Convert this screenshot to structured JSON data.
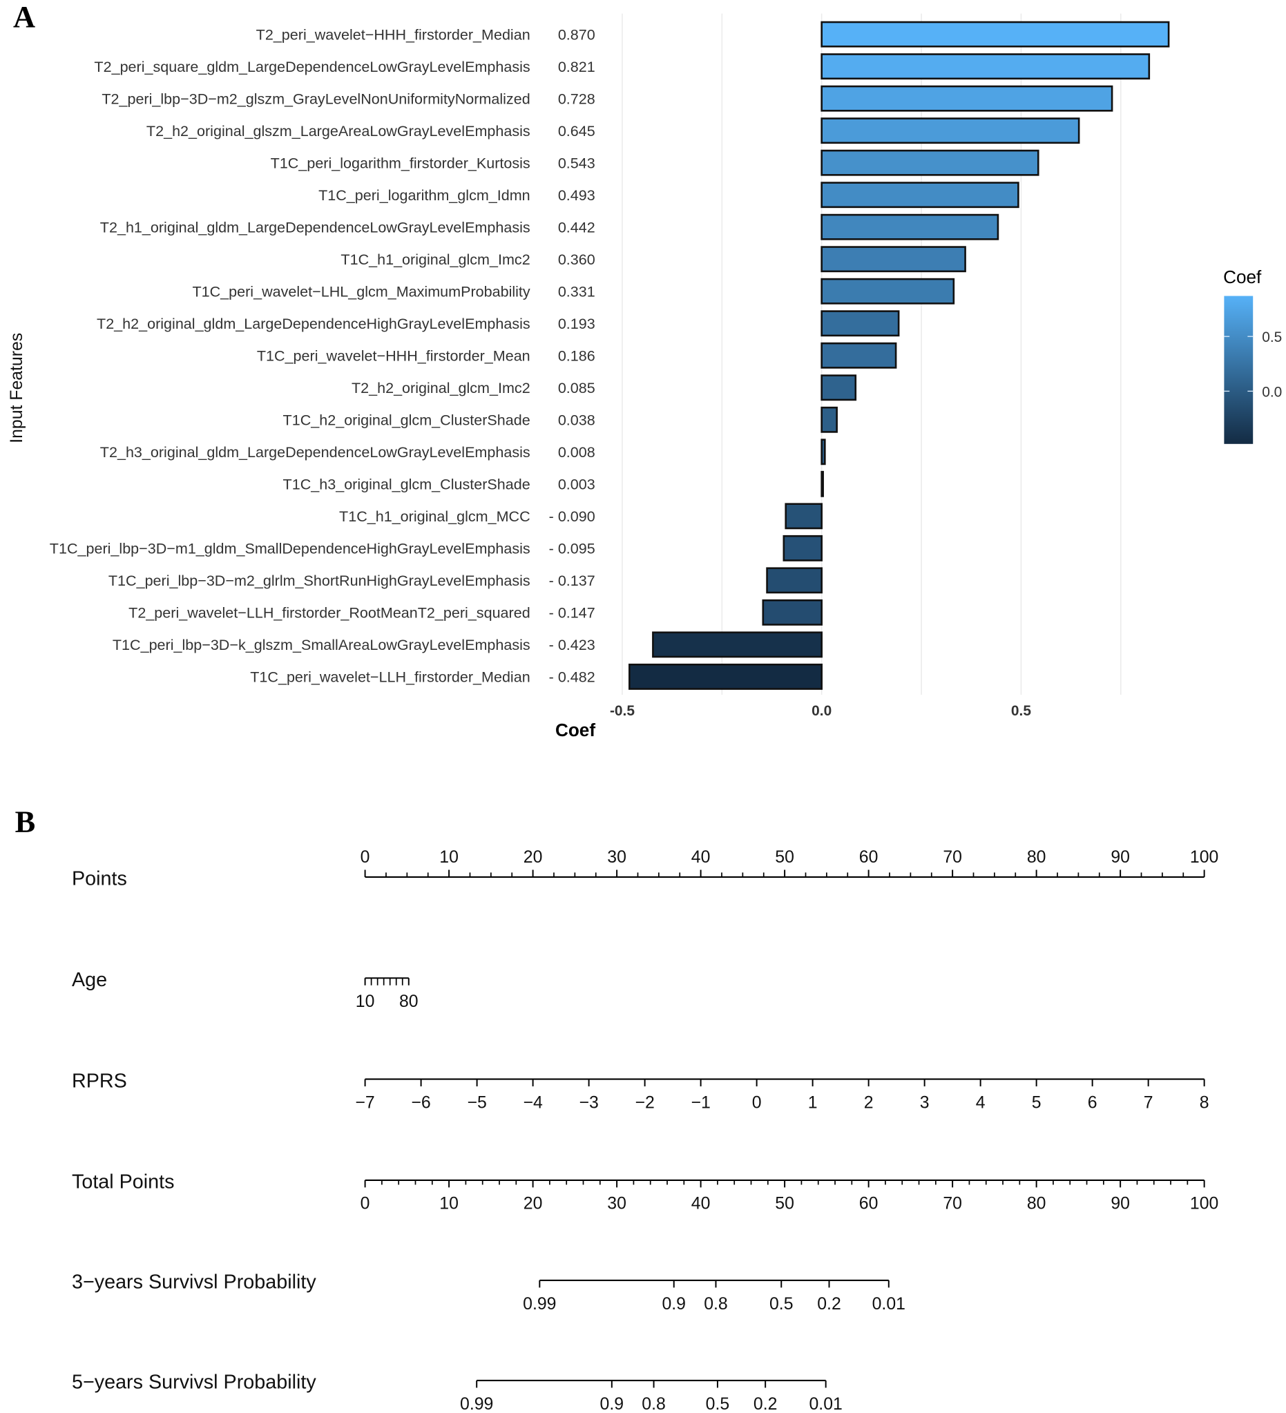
{
  "panels": {
    "a": "A",
    "b": "B"
  },
  "chart_data": [
    {
      "type": "bar",
      "orientation": "horizontal",
      "ylabel": "Input Features",
      "xlabel": "Coef",
      "xlim": [
        -0.55,
        0.9
      ],
      "xticks": [
        "-0.5",
        "0.0",
        "0.5"
      ],
      "xtick_values": [
        -0.5,
        0,
        0.5
      ],
      "grid": true,
      "legend": {
        "title": "Coef",
        "ticks": [
          "0.5",
          "0.0"
        ],
        "tick_values": [
          0.5,
          0
        ],
        "placement": "right",
        "low_color": "#132B43",
        "high_color": "#56B1F7"
      },
      "categories": [
        "T2_peri_wavelet−HHH_firstorder_Median",
        "T2_peri_square_gldm_LargeDependenceLowGrayLevelEmphasis",
        "T2_peri_lbp−3D−m2_glszm_GrayLevelNonUniformityNormalized",
        "T2_h2_original_glszm_LargeAreaLowGrayLevelEmphasis",
        "T1C_peri_logarithm_firstorder_Kurtosis",
        "T1C_peri_logarithm_glcm_Idmn",
        "T2_h1_original_gldm_LargeDependenceLowGrayLevelEmphasis",
        "T1C_h1_original_glcm_Imc2",
        "T1C_peri_wavelet−LHL_glcm_MaximumProbability",
        "T2_h2_original_gldm_LargeDependenceHighGrayLevelEmphasis",
        "T1C_peri_wavelet−HHH_firstorder_Mean",
        "T2_h2_original_glcm_Imc2",
        "T1C_h2_original_glcm_ClusterShade",
        "T2_h3_original_gldm_LargeDependenceLowGrayLevelEmphasis",
        "T1C_h3_original_glcm_ClusterShade",
        "T1C_h1_original_glcm_MCC",
        "T1C_peri_lbp−3D−m1_gldm_SmallDependenceHighGrayLevelEmphasis",
        "T1C_peri_lbp−3D−m2_glrlm_ShortRunHighGrayLevelEmphasis",
        "T2_peri_wavelet−LLH_firstorder_RootMeanT2_peri_squared",
        "T1C_peri_lbp−3D−k_glszm_SmallAreaLowGrayLevelEmphasis",
        "T1C_peri_wavelet−LLH_firstorder_Median"
      ],
      "values": [
        0.87,
        0.821,
        0.728,
        0.645,
        0.543,
        0.493,
        0.442,
        0.36,
        0.331,
        0.193,
        0.186,
        0.085,
        0.038,
        0.008,
        0.003,
        -0.09,
        -0.095,
        -0.137,
        -0.147,
        -0.423,
        -0.482
      ],
      "value_labels": [
        "0.870",
        "0.821",
        "0.728",
        "0.645",
        "0.543",
        "0.493",
        "0.442",
        "0.360",
        "0.331",
        "0.193",
        "0.186",
        "0.085",
        "0.038",
        "0.008",
        "0.003",
        "- 0.090",
        "- 0.095",
        "- 0.137",
        "- 0.147",
        "- 0.423",
        "- 0.482"
      ]
    },
    {
      "type": "nomogram",
      "points_range": [
        0,
        100
      ],
      "rows": [
        {
          "label": "Points",
          "ticks": [
            "0",
            "10",
            "20",
            "30",
            "40",
            "50",
            "60",
            "70",
            "80",
            "90",
            "100"
          ],
          "tick_points": [
            0,
            10,
            20,
            30,
            40,
            50,
            60,
            70,
            80,
            90,
            100
          ],
          "minor_step": 2.5,
          "labels_above": true
        },
        {
          "label": "Age",
          "ticks": [
            "10",
            "80"
          ],
          "tick_points": [
            0,
            5.2
          ],
          "range": [
            10,
            80
          ],
          "minor_count": 8
        },
        {
          "label": "RPRS",
          "ticks": [
            "−7",
            "−6",
            "−5",
            "−4",
            "−3",
            "−2",
            "−1",
            "0",
            "1",
            "2",
            "3",
            "4",
            "5",
            "6",
            "7",
            "8"
          ],
          "range": [
            -7,
            8
          ]
        },
        {
          "label": "Total Points",
          "ticks": [
            "0",
            "10",
            "20",
            "30",
            "40",
            "50",
            "60",
            "70",
            "80",
            "90",
            "100"
          ],
          "tick_points": [
            0,
            10,
            20,
            30,
            40,
            50,
            60,
            70,
            80,
            90,
            100
          ],
          "minor_step": 2
        },
        {
          "label": "3−years Survivsl Probability",
          "ticks": [
            "0.99",
            "0.9",
            "0.8",
            "0.5",
            "0.2",
            "0.01"
          ],
          "tick_points": [
            20.8,
            36.8,
            41.8,
            49.6,
            55.3,
            62.4
          ]
        },
        {
          "label": "5−years Survivsl Probability",
          "ticks": [
            "0.99",
            "0.9",
            "0.8",
            "0.5",
            "0.2",
            "0.01"
          ],
          "tick_points": [
            13.3,
            29.4,
            34.4,
            42.0,
            47.7,
            54.9
          ]
        }
      ]
    }
  ]
}
